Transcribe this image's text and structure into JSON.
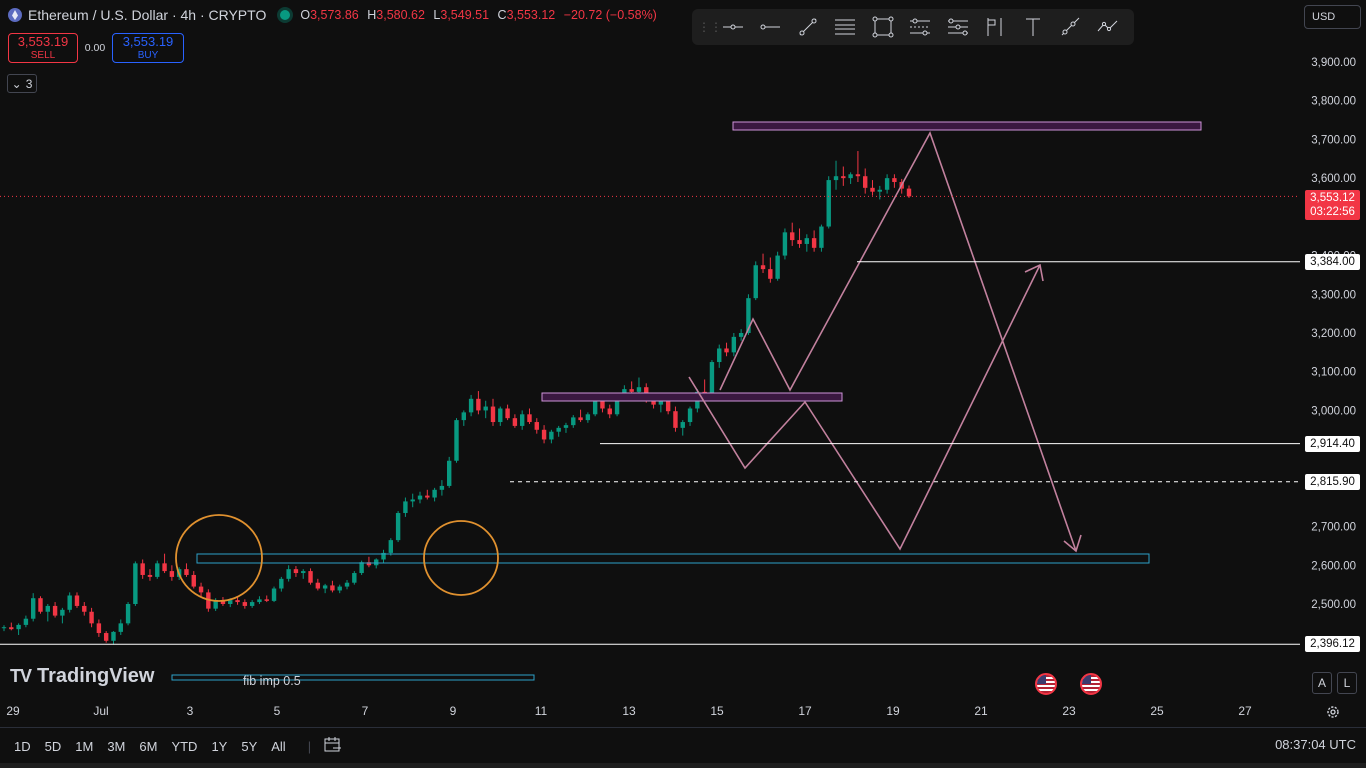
{
  "header": {
    "symbol": "Ethereum / U.S. Dollar · 4h · CRYPTO",
    "ohlc": {
      "o_label": "O",
      "o": "3,573.86",
      "h_label": "H",
      "h": "3,580.62",
      "l_label": "L",
      "l": "3,549.51",
      "c_label": "C",
      "c": "3,553.12",
      "change": "−20.72 (−0.58%)"
    }
  },
  "trade": {
    "sell_price": "3,553.19",
    "sell_label": "SELL",
    "spread": "0.00",
    "buy_price": "3,553.19",
    "buy_label": "BUY"
  },
  "indicators_toggle": {
    "count": "3"
  },
  "currency": {
    "label": "USD"
  },
  "price_axis": {
    "ticks": [
      "3,900.00",
      "3,800.00",
      "3,700.00",
      "3,600.00",
      "3,400.00",
      "3,300.00",
      "3,200.00",
      "3,100.00",
      "3,000.00",
      "2,700.00",
      "2,600.00",
      "2,500.00"
    ],
    "tick_values": [
      3900,
      3800,
      3700,
      3600,
      3400,
      3300,
      3200,
      3100,
      3000,
      2700,
      2600,
      2500
    ],
    "current_price": "3,553.12",
    "countdown": "03:22:56",
    "levels": [
      {
        "label": "3,384.00",
        "value": 3384,
        "dashed": false
      },
      {
        "label": "2,914.40",
        "value": 2914.4,
        "dashed": false
      },
      {
        "label": "2,815.90",
        "value": 2815.9,
        "dashed": true
      },
      {
        "label": "2,396.12",
        "value": 2396.12,
        "dashed": false
      }
    ]
  },
  "time_axis": {
    "ticks": [
      "29",
      "Jul",
      "3",
      "5",
      "7",
      "9",
      "11",
      "13",
      "15",
      "17",
      "19",
      "21",
      "23",
      "25",
      "27"
    ]
  },
  "drawings": {
    "fib_label": "fib imp 0.5"
  },
  "branding": {
    "name": "TradingView"
  },
  "scale_buttons": {
    "auto": "A",
    "log": "L"
  },
  "timeframes": [
    "1D",
    "5D",
    "1M",
    "3M",
    "6M",
    "YTD",
    "1Y",
    "5Y",
    "All"
  ],
  "clock": "08:37:04 UTC",
  "colors": {
    "up": "#089981",
    "down": "#f23645",
    "zone": "#9c27b0",
    "support": "#2ea2c9",
    "path": "#c2819e"
  },
  "chart_data": {
    "type": "candlestick",
    "ylim": [
      2380,
      3980
    ],
    "candles": [
      [
        2438,
        2445,
        2430,
        2440
      ],
      [
        2440,
        2452,
        2432,
        2435
      ],
      [
        2435,
        2450,
        2420,
        2446
      ],
      [
        2446,
        2470,
        2440,
        2462
      ],
      [
        2462,
        2528,
        2455,
        2515
      ],
      [
        2515,
        2520,
        2475,
        2480
      ],
      [
        2480,
        2500,
        2455,
        2495
      ],
      [
        2495,
        2505,
        2465,
        2470
      ],
      [
        2470,
        2490,
        2450,
        2485
      ],
      [
        2485,
        2530,
        2478,
        2522
      ],
      [
        2522,
        2530,
        2490,
        2495
      ],
      [
        2495,
        2505,
        2470,
        2480
      ],
      [
        2480,
        2490,
        2440,
        2450
      ],
      [
        2450,
        2460,
        2415,
        2425
      ],
      [
        2425,
        2430,
        2400,
        2405
      ],
      [
        2405,
        2430,
        2395,
        2428
      ],
      [
        2428,
        2460,
        2420,
        2450
      ],
      [
        2450,
        2505,
        2445,
        2500
      ],
      [
        2500,
        2610,
        2495,
        2605
      ],
      [
        2605,
        2615,
        2565,
        2575
      ],
      [
        2575,
        2590,
        2560,
        2570
      ],
      [
        2570,
        2612,
        2565,
        2605
      ],
      [
        2605,
        2630,
        2580,
        2585
      ],
      [
        2585,
        2600,
        2560,
        2570
      ],
      [
        2570,
        2595,
        2562,
        2590
      ],
      [
        2590,
        2605,
        2570,
        2575
      ],
      [
        2575,
        2585,
        2540,
        2545
      ],
      [
        2545,
        2555,
        2520,
        2530
      ],
      [
        2530,
        2538,
        2480,
        2488
      ],
      [
        2488,
        2515,
        2482,
        2510
      ],
      [
        2510,
        2518,
        2495,
        2500
      ],
      [
        2500,
        2515,
        2492,
        2510
      ],
      [
        2510,
        2520,
        2498,
        2505
      ],
      [
        2505,
        2512,
        2488,
        2495
      ],
      [
        2495,
        2510,
        2490,
        2505
      ],
      [
        2505,
        2520,
        2500,
        2512
      ],
      [
        2512,
        2522,
        2505,
        2508
      ],
      [
        2508,
        2545,
        2505,
        2540
      ],
      [
        2540,
        2570,
        2532,
        2565
      ],
      [
        2565,
        2600,
        2558,
        2590
      ],
      [
        2590,
        2598,
        2570,
        2580
      ],
      [
        2580,
        2590,
        2565,
        2585
      ],
      [
        2585,
        2592,
        2550,
        2555
      ],
      [
        2555,
        2565,
        2535,
        2540
      ],
      [
        2540,
        2552,
        2528,
        2548
      ],
      [
        2548,
        2560,
        2530,
        2535
      ],
      [
        2535,
        2550,
        2528,
        2545
      ],
      [
        2545,
        2562,
        2538,
        2555
      ],
      [
        2555,
        2585,
        2550,
        2580
      ],
      [
        2580,
        2612,
        2575,
        2608
      ],
      [
        2608,
        2622,
        2595,
        2600
      ],
      [
        2600,
        2618,
        2592,
        2615
      ],
      [
        2615,
        2640,
        2605,
        2632
      ],
      [
        2632,
        2670,
        2625,
        2665
      ],
      [
        2665,
        2740,
        2660,
        2735
      ],
      [
        2735,
        2775,
        2725,
        2765
      ],
      [
        2765,
        2785,
        2750,
        2770
      ],
      [
        2770,
        2790,
        2760,
        2780
      ],
      [
        2780,
        2795,
        2770,
        2775
      ],
      [
        2775,
        2800,
        2765,
        2795
      ],
      [
        2795,
        2820,
        2780,
        2805
      ],
      [
        2805,
        2880,
        2800,
        2870
      ],
      [
        2870,
        2980,
        2865,
        2975
      ],
      [
        2975,
        3000,
        2960,
        2995
      ],
      [
        2995,
        3040,
        2985,
        3030
      ],
      [
        3030,
        3050,
        2990,
        3000
      ],
      [
        3000,
        3025,
        2980,
        3010
      ],
      [
        3010,
        3030,
        2960,
        2970
      ],
      [
        2970,
        3010,
        2960,
        3005
      ],
      [
        3005,
        3015,
        2975,
        2980
      ],
      [
        2980,
        2990,
        2955,
        2960
      ],
      [
        2960,
        3000,
        2950,
        2990
      ],
      [
        2990,
        3005,
        2965,
        2970
      ],
      [
        2970,
        2980,
        2940,
        2950
      ],
      [
        2950,
        2962,
        2915,
        2925
      ],
      [
        2925,
        2950,
        2915,
        2945
      ],
      [
        2945,
        2960,
        2932,
        2955
      ],
      [
        2955,
        2968,
        2942,
        2962
      ],
      [
        2962,
        2988,
        2955,
        2982
      ],
      [
        2982,
        3002,
        2970,
        2975
      ],
      [
        2975,
        2995,
        2968,
        2990
      ],
      [
        2990,
        3030,
        2985,
        3025
      ],
      [
        3025,
        3045,
        2995,
        3005
      ],
      [
        3005,
        3015,
        2980,
        2990
      ],
      [
        2990,
        3040,
        2985,
        3035
      ],
      [
        3035,
        3065,
        3025,
        3055
      ],
      [
        3055,
        3075,
        3040,
        3048
      ],
      [
        3048,
        3085,
        3040,
        3060
      ],
      [
        3060,
        3070,
        3020,
        3030
      ],
      [
        3030,
        3045,
        3005,
        3015
      ],
      [
        3015,
        3035,
        2995,
        3028
      ],
      [
        3028,
        3040,
        2990,
        2998
      ],
      [
        2998,
        3010,
        2945,
        2955
      ],
      [
        2955,
        2975,
        2935,
        2970
      ],
      [
        2970,
        3010,
        2960,
        3005
      ],
      [
        3005,
        3055,
        2995,
        3048
      ],
      [
        3048,
        3080,
        3030,
        3040
      ],
      [
        3040,
        3130,
        3035,
        3125
      ],
      [
        3125,
        3170,
        3110,
        3160
      ],
      [
        3160,
        3175,
        3140,
        3150
      ],
      [
        3150,
        3200,
        3140,
        3190
      ],
      [
        3190,
        3210,
        3180,
        3200
      ],
      [
        3200,
        3300,
        3195,
        3290
      ],
      [
        3290,
        3385,
        3285,
        3375
      ],
      [
        3375,
        3405,
        3355,
        3365
      ],
      [
        3365,
        3395,
        3330,
        3340
      ],
      [
        3340,
        3410,
        3335,
        3400
      ],
      [
        3400,
        3470,
        3390,
        3460
      ],
      [
        3460,
        3485,
        3425,
        3440
      ],
      [
        3440,
        3470,
        3420,
        3430
      ],
      [
        3430,
        3455,
        3410,
        3445
      ],
      [
        3445,
        3465,
        3410,
        3420
      ],
      [
        3420,
        3480,
        3410,
        3475
      ],
      [
        3475,
        3605,
        3470,
        3595
      ],
      [
        3595,
        3645,
        3570,
        3605
      ],
      [
        3605,
        3630,
        3580,
        3600
      ],
      [
        3600,
        3615,
        3585,
        3610
      ],
      [
        3610,
        3670,
        3590,
        3605
      ],
      [
        3605,
        3625,
        3560,
        3575
      ],
      [
        3575,
        3595,
        3555,
        3565
      ],
      [
        3565,
        3580,
        3545,
        3570
      ],
      [
        3570,
        3610,
        3560,
        3600
      ],
      [
        3600,
        3610,
        3575,
        3590
      ],
      [
        3590,
        3598,
        3560,
        3573
      ],
      [
        3573,
        3581,
        3549,
        3553
      ]
    ]
  }
}
